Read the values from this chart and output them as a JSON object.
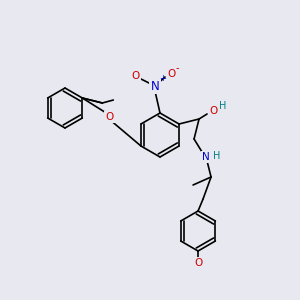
{
  "bg_color": "#e8e8f0",
  "bond_color": "#000000",
  "bond_width": 1.2,
  "atom_colors": {
    "O": "#cc0000",
    "N": "#0000cc",
    "H": "#008080",
    "C": "#000000"
  },
  "font_size": 7.5
}
